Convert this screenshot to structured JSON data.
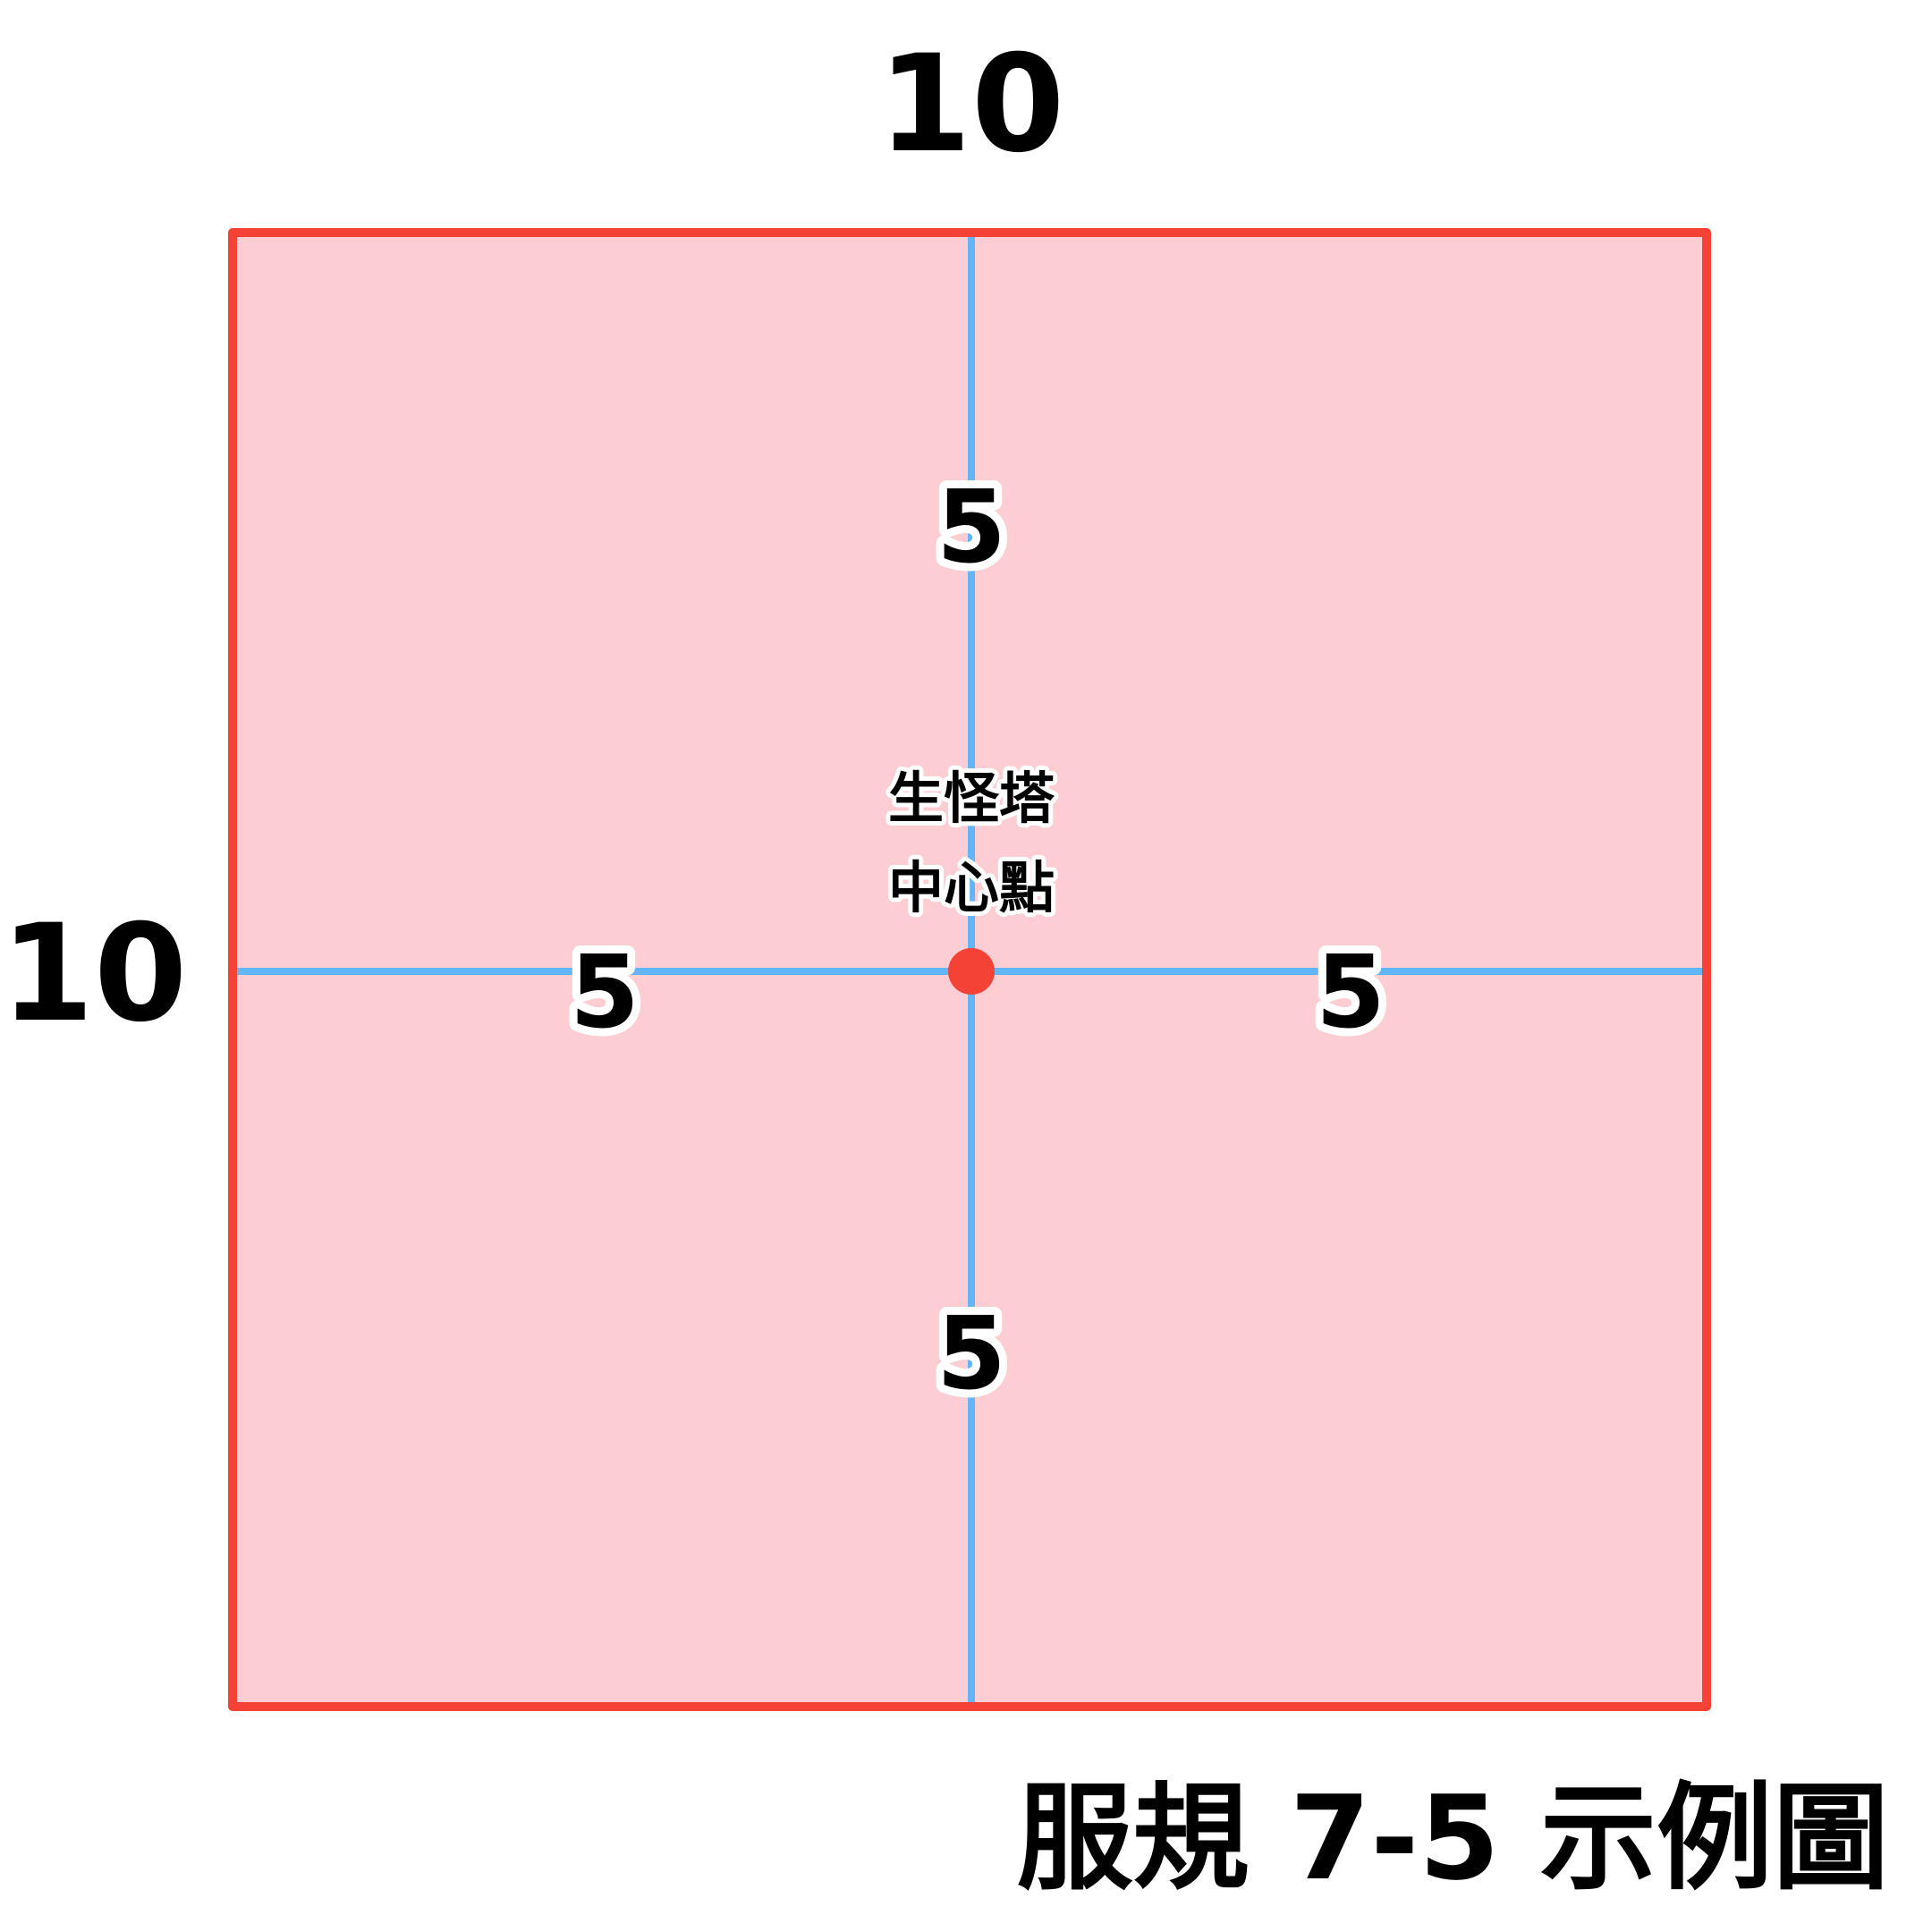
{
  "diagram": {
    "top_dimension_label": "10",
    "left_dimension_label": "10",
    "half_labels": {
      "top": "5",
      "bottom": "5",
      "left": "5",
      "right": "5"
    },
    "center_label_line1": "生怪塔",
    "center_label_line2": "中心點",
    "caption": "服規 7-5 示例圖"
  },
  "colors": {
    "area_fill": "#fccdd2",
    "border": "#f44336",
    "axis_lines": "#64b5f6",
    "center_dot": "#f44336"
  }
}
